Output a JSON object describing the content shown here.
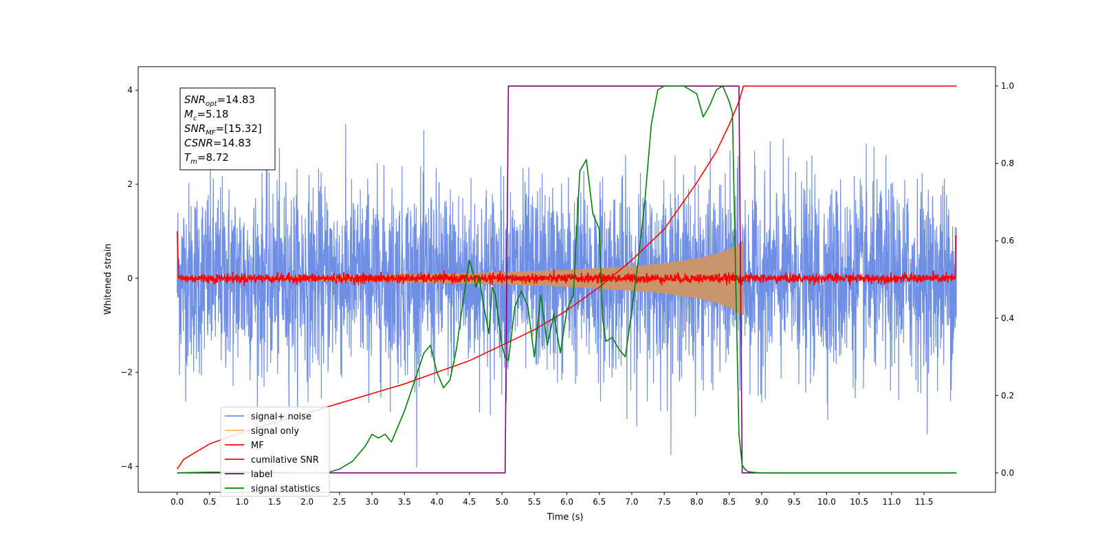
{
  "chart_data": {
    "type": "line",
    "xlabel": "Time (s)",
    "ylabel": "Whitened strain",
    "xlim": [
      -0.6,
      12.6
    ],
    "ylim_left": [
      -4.55,
      4.5
    ],
    "ylim_right": [
      -0.05,
      1.05
    ],
    "x_ticks": [
      "0.0",
      "0.5",
      "1.0",
      "1.5",
      "2.0",
      "2.5",
      "3.0",
      "3.5",
      "4.0",
      "4.5",
      "5.0",
      "5.5",
      "6.0",
      "6.5",
      "7.0",
      "7.5",
      "8.0",
      "8.5",
      "9.0",
      "9.5",
      "10.0",
      "10.5",
      "11.0",
      "11.5"
    ],
    "y_ticks_left": [
      -4,
      -2,
      0,
      2,
      4
    ],
    "y_ticks_right": [
      "0.0",
      "0.2",
      "0.4",
      "0.6",
      "0.8",
      "1.0"
    ],
    "annotation": {
      "lines": [
        {
          "sym": "SNR",
          "sub": "opt",
          "val": "=14.83"
        },
        {
          "sym": "M",
          "sub": "c",
          "val": "=5.18"
        },
        {
          "sym": "SNR",
          "sub": "MF",
          "val": "=[15.32]"
        },
        {
          "sym": "CSNR",
          "sub": "",
          "val": "=14.83"
        },
        {
          "sym": "T",
          "sub": "m",
          "val": "=8.72"
        }
      ]
    },
    "legend": {
      "location": "lower-left",
      "entries": [
        {
          "label": "signal+ noise",
          "color": "#6f8fe6"
        },
        {
          "label": "signal only",
          "color": "#f5b86b"
        },
        {
          "label": "MF",
          "color": "#ff0000"
        },
        {
          "label": "cumilative SNR",
          "color": "#ff0000"
        },
        {
          "label": "label",
          "color": "#800080"
        },
        {
          "label": "signal statistics",
          "color": "#008000"
        }
      ]
    },
    "series": [
      {
        "name": "signal+ noise",
        "axis": "left",
        "color": "#6f8fe6",
        "t_range": [
          0,
          12
        ],
        "noise_sigma": 1.0,
        "peak_abs": 4.1
      },
      {
        "name": "signal only",
        "axis": "left",
        "color": "#c8966a",
        "t_range": [
          0,
          8.72
        ],
        "envelope": {
          "t": [
            0,
            1,
            2,
            3,
            4,
            5,
            6,
            7,
            7.5,
            8,
            8.3,
            8.5,
            8.65,
            8.72
          ],
          "amp": [
            0.02,
            0.03,
            0.05,
            0.07,
            0.1,
            0.13,
            0.18,
            0.26,
            0.32,
            0.42,
            0.52,
            0.62,
            0.74,
            0.78
          ]
        }
      },
      {
        "name": "MF",
        "axis": "left",
        "color": "#ff0000",
        "t_range": [
          0,
          12
        ],
        "noise_sigma": 0.05
      },
      {
        "name": "cumilative SNR",
        "axis": "right",
        "color": "#ff0000",
        "x": [
          0.0,
          0.1,
          0.5,
          1.0,
          1.5,
          2.0,
          2.5,
          3.0,
          3.5,
          4.0,
          4.5,
          5.0,
          5.5,
          6.0,
          6.5,
          7.0,
          7.5,
          8.0,
          8.3,
          8.5,
          8.65,
          8.72,
          12.0
        ],
        "y": [
          0.01,
          0.035,
          0.075,
          0.105,
          0.13,
          0.155,
          0.18,
          0.205,
          0.23,
          0.26,
          0.29,
          0.33,
          0.37,
          0.42,
          0.48,
          0.55,
          0.63,
          0.75,
          0.83,
          0.9,
          0.96,
          1.0,
          1.0
        ]
      },
      {
        "name": "label",
        "axis": "right",
        "color": "#800080",
        "x": [
          0.0,
          5.05,
          5.1,
          8.65,
          8.7,
          12.0
        ],
        "y": [
          0.0,
          0.0,
          1.0,
          1.0,
          0.0,
          0.0
        ]
      },
      {
        "name": "signal statistics",
        "axis": "right",
        "color": "#008000",
        "x": [
          0.0,
          0.5,
          1.0,
          1.5,
          2.0,
          2.3,
          2.5,
          2.7,
          2.9,
          3.0,
          3.1,
          3.2,
          3.3,
          3.4,
          3.5,
          3.6,
          3.7,
          3.8,
          3.9,
          4.0,
          4.1,
          4.2,
          4.3,
          4.4,
          4.5,
          4.55,
          4.6,
          4.65,
          4.7,
          4.8,
          4.85,
          4.9,
          5.0,
          5.05,
          5.1,
          5.2,
          5.3,
          5.4,
          5.5,
          5.6,
          5.7,
          5.8,
          5.9,
          6.0,
          6.1,
          6.2,
          6.3,
          6.4,
          6.5,
          6.55,
          6.6,
          6.7,
          6.8,
          6.9,
          7.0,
          7.1,
          7.2,
          7.3,
          7.4,
          7.5,
          7.6,
          7.7,
          7.8,
          7.9,
          8.0,
          8.1,
          8.2,
          8.3,
          8.4,
          8.5,
          8.55,
          8.6,
          8.65,
          8.7,
          8.75,
          8.8,
          8.9,
          9.0,
          12.0
        ],
        "y": [
          0.0,
          0.002,
          0.002,
          0.001,
          0.0,
          0.0,
          0.01,
          0.03,
          0.07,
          0.1,
          0.09,
          0.1,
          0.08,
          0.12,
          0.16,
          0.21,
          0.26,
          0.31,
          0.33,
          0.26,
          0.22,
          0.24,
          0.32,
          0.44,
          0.55,
          0.52,
          0.48,
          0.51,
          0.45,
          0.36,
          0.48,
          0.46,
          0.33,
          0.3,
          0.29,
          0.43,
          0.47,
          0.43,
          0.3,
          0.46,
          0.33,
          0.41,
          0.31,
          0.42,
          0.46,
          0.78,
          0.81,
          0.67,
          0.63,
          0.4,
          0.34,
          0.35,
          0.32,
          0.3,
          0.42,
          0.55,
          0.7,
          0.9,
          0.99,
          1.0,
          1.0,
          1.0,
          1.0,
          0.99,
          0.98,
          0.92,
          0.95,
          0.99,
          1.0,
          0.96,
          0.93,
          0.5,
          0.1,
          0.02,
          0.008,
          0.003,
          0.001,
          0.0,
          0.0
        ]
      }
    ]
  }
}
